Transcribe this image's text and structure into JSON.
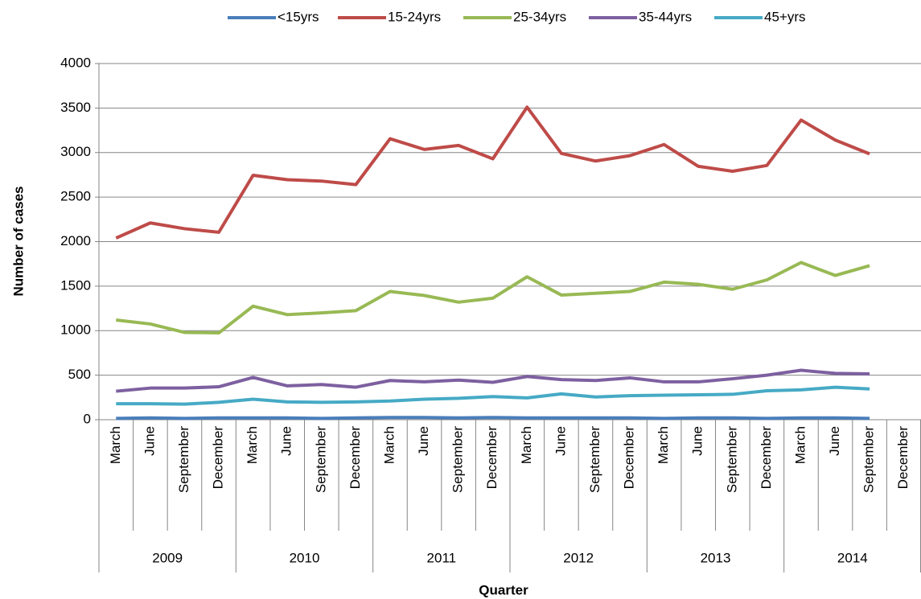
{
  "chart_data": {
    "type": "line",
    "y_label": "Number of cases",
    "x_label": "Quarter",
    "categories": [
      "March",
      "June",
      "September",
      "December",
      "March",
      "June",
      "September",
      "December",
      "March",
      "June",
      "September",
      "December",
      "March",
      "June",
      "September",
      "December",
      "March",
      "June",
      "September",
      "December",
      "March",
      "June",
      "September",
      "December"
    ],
    "years": [
      "2009",
      "2010",
      "2011",
      "2012",
      "2013",
      "2014"
    ],
    "ylim": [
      0,
      4000
    ],
    "yticks": [
      0,
      500,
      1000,
      1500,
      2000,
      2500,
      3000,
      3500,
      4000
    ],
    "grid": true,
    "legend": "top",
    "series": [
      {
        "name": "<15yrs",
        "color": "#4a7ebb",
        "values": [
          15,
          20,
          15,
          20,
          20,
          20,
          15,
          20,
          25,
          25,
          20,
          25,
          20,
          20,
          20,
          20,
          15,
          20,
          20,
          15,
          20,
          20,
          15,
          null
        ]
      },
      {
        "name": "15-24yrs",
        "color": "#be4b48",
        "values": [
          2040,
          2210,
          2145,
          2105,
          2745,
          2695,
          2680,
          2640,
          3155,
          3035,
          3080,
          2930,
          3510,
          2990,
          2905,
          2965,
          3090,
          2845,
          2790,
          2855,
          3365,
          3140,
          2985,
          null
        ]
      },
      {
        "name": "25-34yrs",
        "color": "#98b954",
        "values": [
          1120,
          1075,
          980,
          975,
          1275,
          1180,
          1200,
          1225,
          1440,
          1395,
          1320,
          1365,
          1605,
          1400,
          1420,
          1440,
          1545,
          1520,
          1465,
          1570,
          1765,
          1620,
          1730,
          null
        ]
      },
      {
        "name": "35-44yrs",
        "color": "#7d60a0",
        "values": [
          320,
          355,
          355,
          370,
          475,
          380,
          395,
          365,
          440,
          425,
          445,
          420,
          485,
          450,
          440,
          470,
          425,
          425,
          460,
          500,
          555,
          520,
          515,
          null
        ]
      },
      {
        "name": "45+yrs",
        "color": "#46aac5",
        "values": [
          180,
          180,
          175,
          195,
          230,
          200,
          195,
          200,
          210,
          230,
          240,
          260,
          245,
          290,
          255,
          270,
          275,
          280,
          285,
          325,
          335,
          365,
          345,
          null
        ]
      }
    ]
  }
}
